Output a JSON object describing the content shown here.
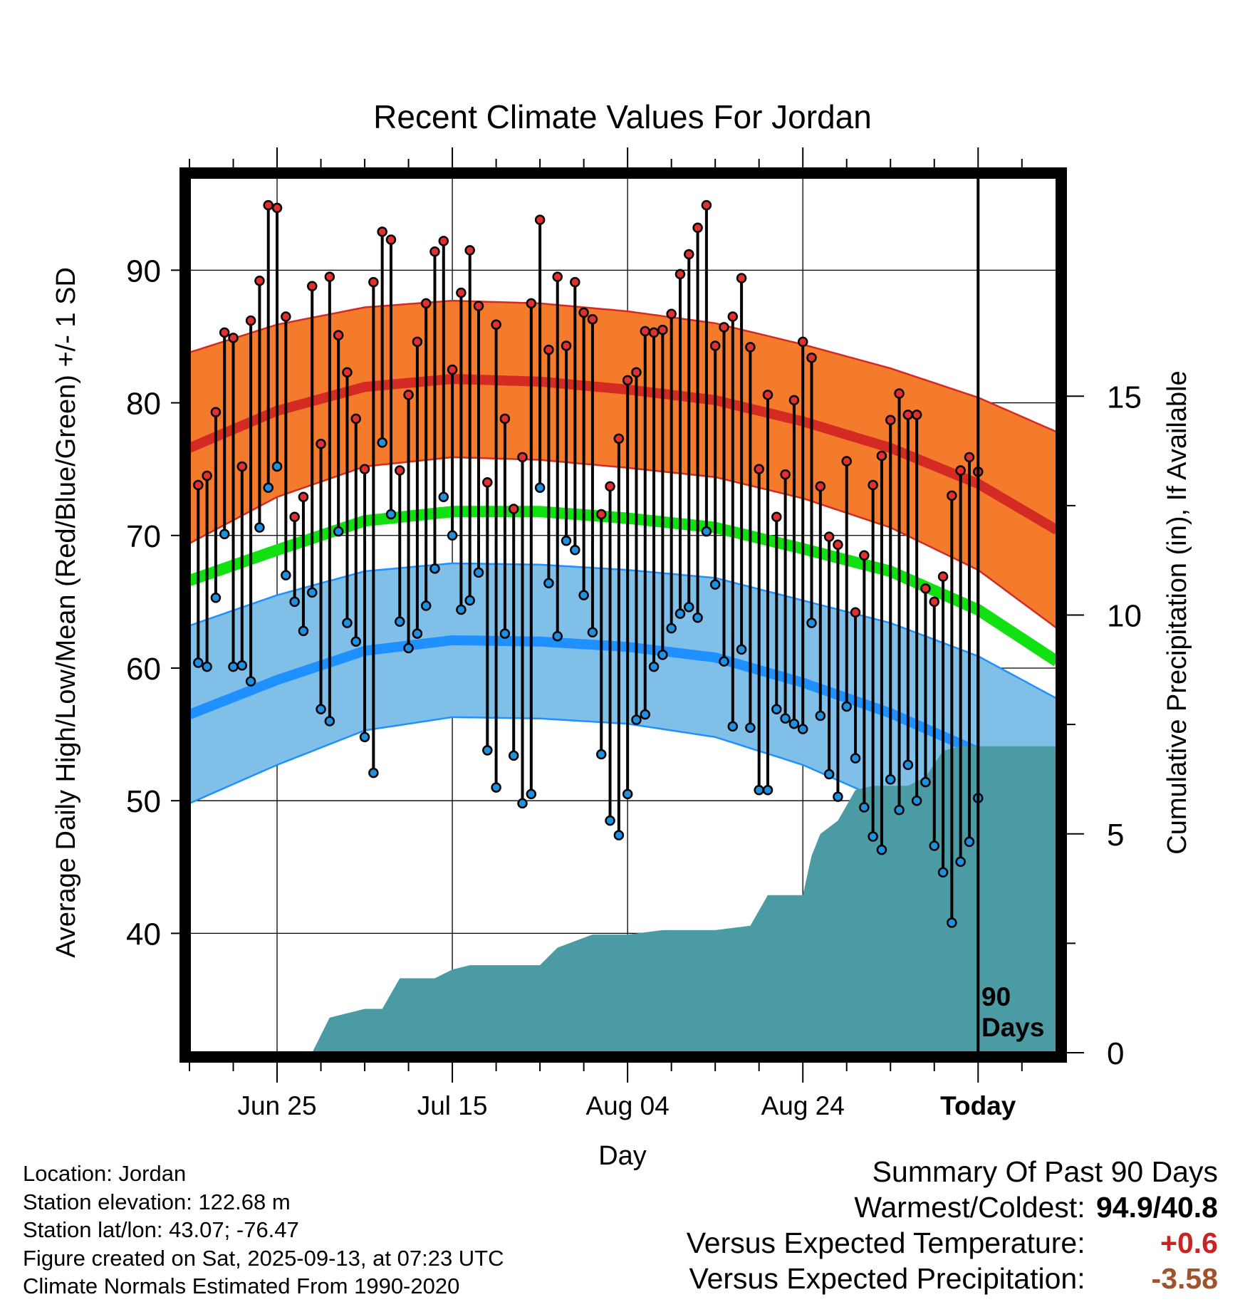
{
  "chart_data": {
    "type": "line",
    "title": "Recent Climate Values For Jordan",
    "xlabel": "Day",
    "ylabel": "Average Daily High/Low/Mean (Red/Blue/Green) +/- 1 SD",
    "y2label": "Cumulative Precipitation (in), If Available",
    "x_range_days": [
      -90,
      9
    ],
    "ylim": [
      31,
      97
    ],
    "y2lim": [
      0,
      20
    ],
    "y_ticks": [
      "40",
      "50",
      "60",
      "70",
      "80",
      "90"
    ],
    "y2_ticks": [
      "0",
      "5",
      "10",
      "15"
    ],
    "x_tick_labels": [
      "Jun 25",
      "Jul 15",
      "Aug 04",
      "Aug 24",
      "Today"
    ],
    "x_tick_days": [
      -80,
      -60,
      -40,
      -20,
      0
    ],
    "window_label_line1": "90",
    "window_label_line2": "Days",
    "normals": {
      "days": [
        -90,
        -80,
        -70,
        -60,
        -50,
        -40,
        -30,
        -20,
        -10,
        0,
        9
      ],
      "high_mean": [
        76.6,
        79.4,
        81.2,
        81.8,
        81.6,
        81.0,
        80.2,
        78.6,
        76.6,
        73.9,
        70.4
      ],
      "high_sd": [
        7.2,
        6.5,
        6.0,
        5.9,
        5.9,
        5.9,
        5.8,
        5.8,
        6.0,
        6.5,
        7.4
      ],
      "mean_mean": [
        66.6,
        68.9,
        71.1,
        71.8,
        71.8,
        71.3,
        70.6,
        69.0,
        67.3,
        64.4,
        60.5
      ],
      "low_mean": [
        56.5,
        59.1,
        61.3,
        62.1,
        62.0,
        61.6,
        60.8,
        58.9,
        56.6,
        53.7,
        50.2
      ],
      "low_sd": [
        6.7,
        6.4,
        6.0,
        5.8,
        5.8,
        5.8,
        6.0,
        6.2,
        6.8,
        7.2,
        7.5
      ],
      "colors": {
        "high_band": "#f47a2c",
        "high_line": "#d42a24",
        "mean_line": "#11e011",
        "low_band": "#80c0e8",
        "low_line": "#1e90ff"
      }
    },
    "series": [
      {
        "name": "Daily High",
        "color": "#e03030",
        "values": [
          73.8,
          74.5,
          79.3,
          85.3,
          84.9,
          75.2,
          86.2,
          89.2,
          94.9,
          94.7,
          86.5,
          71.4,
          72.9,
          88.8,
          76.9,
          89.5,
          85.1,
          82.3,
          78.8,
          75.0,
          89.1,
          92.9,
          92.3,
          74.9,
          80.6,
          84.6,
          87.5,
          91.4,
          92.2,
          82.5,
          88.3,
          91.5,
          87.3,
          74.0,
          85.9,
          78.8,
          72.0,
          75.9,
          87.5,
          93.8,
          84.0,
          89.5,
          84.3,
          89.1,
          86.8,
          86.3,
          71.6,
          73.7,
          77.3,
          81.7,
          82.3,
          85.4,
          85.3,
          85.5,
          86.7,
          89.7,
          91.2,
          93.2,
          94.9,
          84.3,
          85.7,
          86.5,
          89.4,
          84.2,
          75.0,
          80.6,
          71.4,
          74.6,
          80.2,
          84.6,
          83.4,
          73.7,
          69.9,
          69.3,
          75.6,
          64.2,
          68.5,
          73.8,
          76.0,
          78.7,
          80.7,
          79.1,
          79.1,
          66.0,
          65.0,
          66.9,
          73.0,
          74.9,
          75.9,
          74.8
        ]
      },
      {
        "name": "Daily Low",
        "color": "#2090e0",
        "values": [
          60.4,
          60.1,
          65.3,
          70.1,
          60.1,
          60.2,
          59.0,
          70.6,
          73.6,
          75.2,
          67.0,
          65.0,
          62.8,
          65.7,
          56.9,
          56.0,
          70.3,
          63.4,
          62.0,
          54.8,
          52.1,
          77.0,
          71.6,
          63.5,
          61.5,
          62.6,
          64.7,
          67.5,
          72.9,
          70.0,
          64.4,
          65.1,
          67.2,
          53.8,
          51.0,
          62.6,
          53.4,
          49.8,
          50.5,
          73.6,
          66.4,
          62.4,
          69.6,
          68.9,
          65.5,
          62.7,
          53.5,
          48.5,
          47.4,
          50.5,
          56.1,
          56.5,
          60.1,
          61.0,
          63.0,
          64.1,
          64.6,
          63.8,
          70.3,
          66.3,
          60.5,
          55.6,
          61.4,
          55.5,
          50.8,
          50.8,
          56.9,
          56.2,
          55.8,
          55.4,
          63.4,
          56.4,
          52.0,
          50.3,
          57.1,
          53.2,
          49.5,
          47.3,
          46.3,
          51.6,
          49.3,
          52.7,
          50.0,
          51.4,
          46.6,
          44.6,
          40.8,
          45.4,
          46.9,
          50.2
        ]
      }
    ],
    "precip_cumulative": {
      "color": "#4a9ba3",
      "days": [
        -90,
        -76,
        -74,
        -70,
        -68,
        -66,
        -62,
        -60,
        -58,
        -54,
        -50,
        -48,
        -44,
        -40,
        -36,
        -30,
        -26,
        -24,
        -20,
        -19,
        -18,
        -16,
        -14,
        -12,
        -10,
        -8,
        -6,
        -4,
        -2,
        9
      ],
      "values": [
        0,
        0,
        0.8,
        1.0,
        1.0,
        1.7,
        1.7,
        1.9,
        2.0,
        2.0,
        2.0,
        2.4,
        2.7,
        2.7,
        2.8,
        2.8,
        2.9,
        3.6,
        3.6,
        4.5,
        5.0,
        5.3,
        6.0,
        6.1,
        6.1,
        6.1,
        6.3,
        6.9,
        7.0,
        7.0
      ]
    }
  },
  "footer": {
    "location": "Location: Jordan",
    "elevation": "Station elevation: 122.68 m",
    "latlon": "Station lat/lon: 43.07; -76.47",
    "created": "Figure created on Sat, 2025-09-13, at 07:23 UTC",
    "normals": "Climate Normals Estimated From 1990-2020"
  },
  "summary": {
    "title": "Summary Of Past 90 Days",
    "warm_cold_label": "Warmest/Coldest:",
    "warm_cold_value": "94.9/40.8",
    "temp_label": "Versus Expected Temperature:",
    "temp_value": "+0.6",
    "temp_color": "#cc2222",
    "precip_label": "Versus Expected Precipitation:",
    "precip_value": "-3.58",
    "precip_color": "#a0522d"
  }
}
